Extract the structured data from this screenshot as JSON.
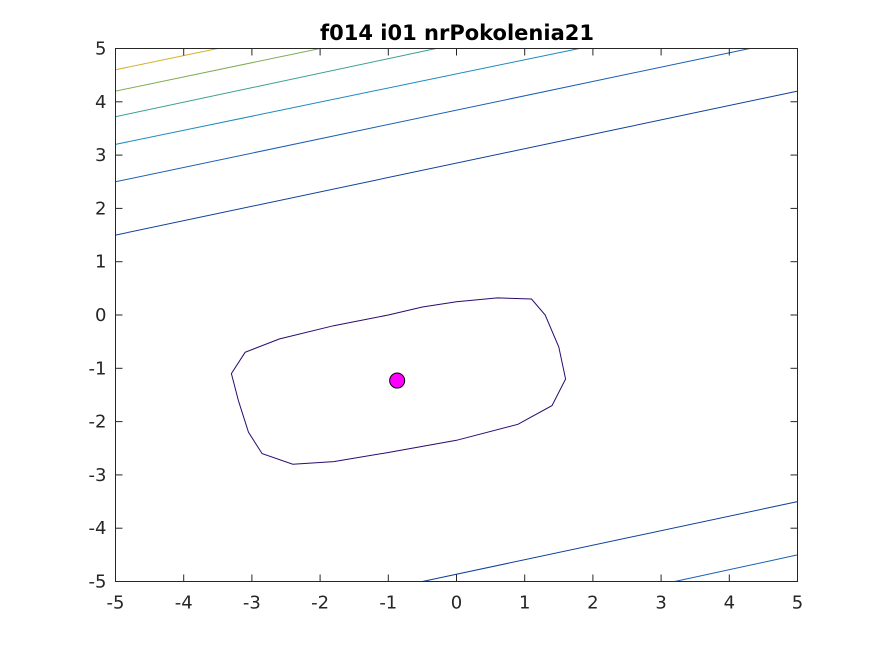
{
  "chart_data": {
    "type": "contour",
    "title": "f014 i01 nrPokolenia21",
    "xlabel": "",
    "ylabel": "",
    "xlim": [
      -5,
      5
    ],
    "ylim": [
      -5,
      5
    ],
    "xticks": [
      -5,
      -4,
      -3,
      -2,
      -1,
      0,
      1,
      2,
      3,
      4,
      5
    ],
    "yticks": [
      -5,
      -4,
      -3,
      -2,
      -1,
      0,
      1,
      2,
      3,
      4,
      5
    ],
    "grid": false,
    "box": true,
    "contours": [
      {
        "level": 1,
        "color": "#2a0a6e",
        "points": [
          [
            -3.2,
            -1.6
          ],
          [
            -3.3,
            -1.1
          ],
          [
            -3.1,
            -0.7
          ],
          [
            -2.6,
            -0.45
          ],
          [
            -1.8,
            -0.2
          ],
          [
            -1.0,
            0.0
          ],
          [
            -0.5,
            0.15
          ],
          [
            0.0,
            0.25
          ],
          [
            0.6,
            0.32
          ],
          [
            1.1,
            0.3
          ],
          [
            1.3,
            0.0
          ],
          [
            1.5,
            -0.6
          ],
          [
            1.6,
            -1.2
          ],
          [
            1.4,
            -1.7
          ],
          [
            0.9,
            -2.05
          ],
          [
            0.0,
            -2.35
          ],
          [
            -1.0,
            -2.58
          ],
          [
            -1.8,
            -2.75
          ],
          [
            -2.4,
            -2.8
          ],
          [
            -2.85,
            -2.6
          ],
          [
            -3.05,
            -2.2
          ],
          [
            -3.2,
            -1.6
          ]
        ]
      },
      {
        "level": 2,
        "color": "#0e3f9b",
        "points": [
          [
            -5,
            1.5
          ],
          [
            5,
            4.2
          ]
        ]
      },
      {
        "level": 3,
        "color": "#1a5fb5",
        "points": [
          [
            -5,
            2.5
          ],
          [
            4.3,
            5
          ]
        ]
      },
      {
        "level": 4,
        "color": "#1b8ac0",
        "points": [
          [
            -5,
            3.2
          ],
          [
            1.8,
            5
          ]
        ]
      },
      {
        "level": 5,
        "color": "#3aa08f",
        "points": [
          [
            -5,
            3.72
          ],
          [
            -0.3,
            5
          ]
        ]
      },
      {
        "level": 6,
        "color": "#7fae55",
        "points": [
          [
            -5,
            4.2
          ],
          [
            -2.0,
            5
          ]
        ]
      },
      {
        "level": 7,
        "color": "#d4b326",
        "points": [
          [
            -5,
            4.6
          ],
          [
            -3.5,
            5
          ]
        ]
      },
      {
        "level": 8,
        "color": "#0e3f9b",
        "points": [
          [
            -0.5,
            -5
          ],
          [
            5,
            -3.5
          ]
        ]
      },
      {
        "level": 9,
        "color": "#1a5fb5",
        "points": [
          [
            3.2,
            -5
          ],
          [
            5,
            -4.5
          ]
        ]
      }
    ],
    "marker": {
      "x": -0.87,
      "y": -1.23,
      "color": "#ff00ff",
      "edge": "#000000"
    }
  }
}
